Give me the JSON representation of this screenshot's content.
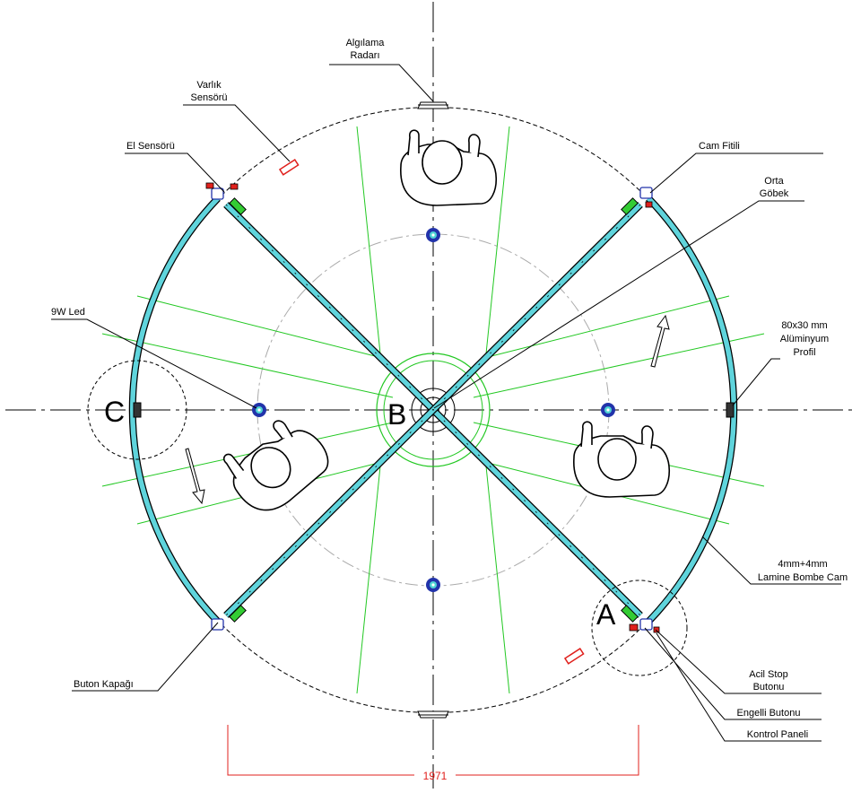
{
  "labels": {
    "algilama_radari": [
      "Algılama",
      "Radarı"
    ],
    "varlik_sensoru": [
      "Varlık",
      "Sensörü"
    ],
    "el_sensoru": "El Sensörü",
    "cam_fitili": "Cam Fitili",
    "orta_gobek": [
      "Orta",
      "Göbek"
    ],
    "led": "9W Led",
    "aluminyum_profil": [
      "80x30 mm",
      "Alüminyum",
      "Profil"
    ],
    "lamine_cam": [
      "4mm+4mm",
      "Lamine Bombe Cam"
    ],
    "buton_kapagi": "Buton Kapağı",
    "acil_stop": [
      "Acil Stop",
      "Butonu"
    ],
    "engelli_butonu": "Engelli Butonu",
    "kontrol_paneli": "Kontrol Paneli"
  },
  "section_markers": {
    "a": "A",
    "b": "B",
    "c": "C"
  },
  "dimension": "1971",
  "colors": {
    "glass": "#5fd4dc",
    "spokes": "#22c822",
    "dimension": "#e0201c",
    "led": "#2233aa",
    "sensor": "#e0201c",
    "guide": "#aaaaaa"
  }
}
